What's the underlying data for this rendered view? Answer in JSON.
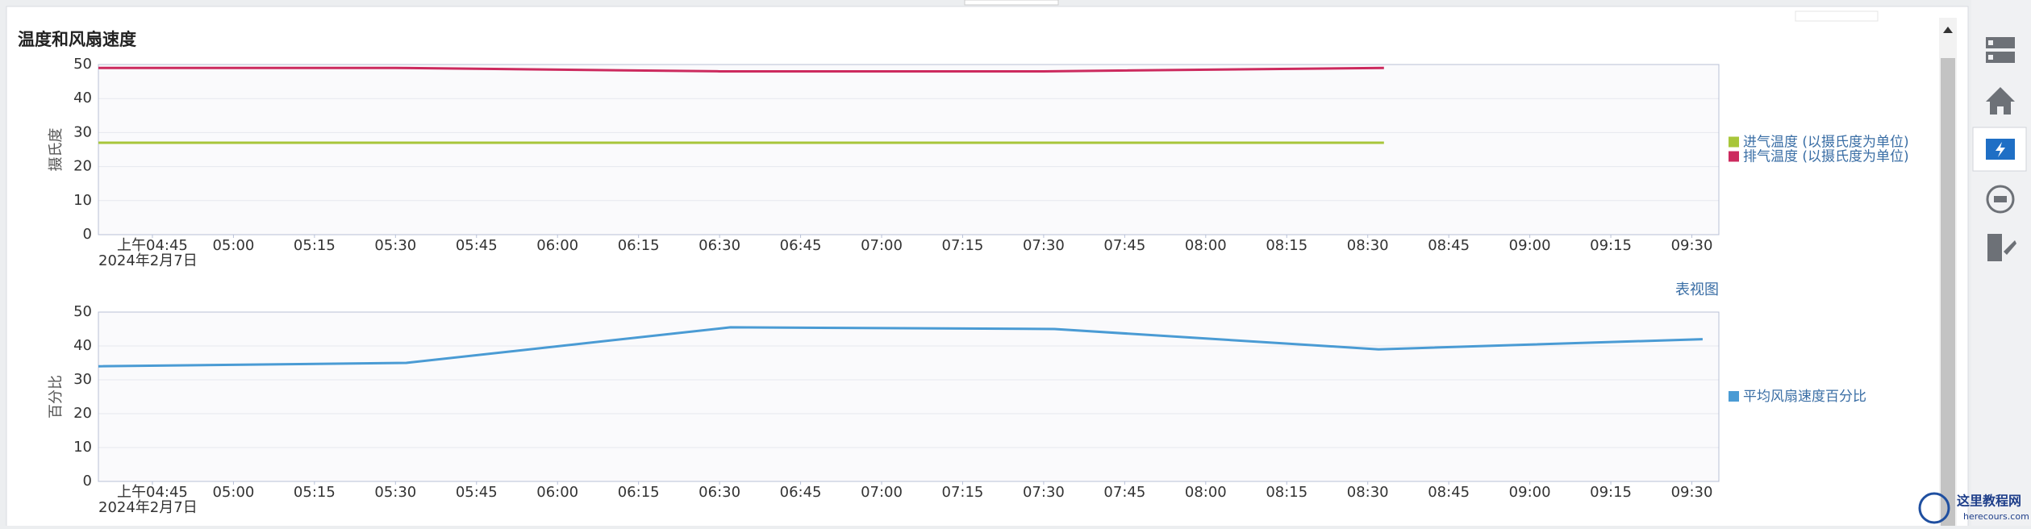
{
  "title": "温度和风扇速度",
  "table_view_link": "表视图",
  "watermark": {
    "name": "这里教程网",
    "url": "herecours.com"
  },
  "chart_data": [
    {
      "type": "line",
      "y_label": "摄氏度",
      "x_date_label": "2024年2月7日",
      "xlim": [
        "04:35",
        "09:35"
      ],
      "xticks": [
        {
          "value": "04:45",
          "label": "上午04:45"
        },
        "05:00",
        "05:15",
        "05:30",
        "05:45",
        "06:00",
        "06:15",
        "06:30",
        "06:45",
        "07:00",
        "07:15",
        "07:30",
        "07:45",
        "08:00",
        "08:15",
        "08:30",
        "08:45",
        "09:00",
        "09:15",
        "09:30"
      ],
      "ylim": [
        0,
        50
      ],
      "yticks": [
        0,
        10,
        20,
        30,
        40,
        50
      ],
      "grid": true,
      "legend": "right",
      "x": [
        "04:35",
        "05:30",
        "06:30",
        "07:30",
        "08:33"
      ],
      "series": [
        {
          "name": "进气温度 (以摄氏度为单位)",
          "color": "#a8c63a",
          "values": [
            27,
            27,
            27,
            27,
            27
          ]
        },
        {
          "name": "排气温度 (以摄氏度为单位)",
          "color": "#cc2a5e",
          "values": [
            49,
            49,
            48,
            48,
            49
          ]
        }
      ]
    },
    {
      "type": "line",
      "y_label": "百分比",
      "x_date_label": "2024年2月7日",
      "xlim": [
        "04:35",
        "09:35"
      ],
      "xticks": [
        {
          "value": "04:45",
          "label": "上午04:45"
        },
        "05:00",
        "05:15",
        "05:30",
        "05:45",
        "06:00",
        "06:15",
        "06:30",
        "06:45",
        "07:00",
        "07:15",
        "07:30",
        "07:45",
        "08:00",
        "08:15",
        "08:30",
        "08:45",
        "09:00",
        "09:15",
        "09:30"
      ],
      "ylim": [
        0,
        50
      ],
      "yticks": [
        0,
        10,
        20,
        30,
        40,
        50
      ],
      "grid": true,
      "legend": "right",
      "x": [
        "04:35",
        "05:32",
        "06:32",
        "07:32",
        "08:32",
        "09:32"
      ],
      "series": [
        {
          "name": "平均风扇速度百分比",
          "color": "#4a9bd4",
          "values": [
            34,
            35,
            45.5,
            45,
            39,
            42
          ]
        }
      ]
    }
  ]
}
